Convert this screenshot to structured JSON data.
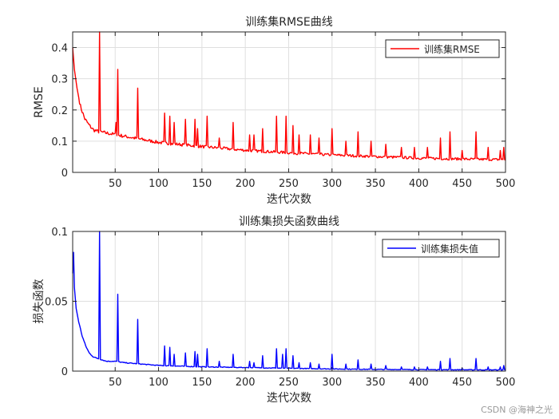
{
  "chart_data": [
    {
      "type": "line",
      "title": "训练集RMSE曲线",
      "xlabel": "迭代次数",
      "ylabel": "RMSE",
      "xlim": [
        1,
        500
      ],
      "ylim": [
        0,
        0.45
      ],
      "xticks": [
        50,
        100,
        150,
        200,
        250,
        300,
        350,
        400,
        450,
        500
      ],
      "xtick_labels": [
        "50",
        "100",
        "150",
        "200",
        "250",
        "300",
        "350",
        "400",
        "450",
        "500"
      ],
      "yticks": [
        0,
        0.1,
        0.2,
        0.3,
        0.4
      ],
      "ytick_labels": [
        "0",
        "0.1",
        "0.2",
        "0.3",
        "0.4"
      ],
      "grid": true,
      "legend_location": "top-right",
      "series": [
        {
          "name": "训练集RMSE",
          "color": "#ff0000",
          "baseline": {
            "x": [
              1,
              3,
              6,
              10,
              15,
              20,
              25,
              30,
              40,
              50,
              60,
              80,
              100,
              150,
              200,
              250,
              300,
              350,
              400,
              450,
              500
            ],
            "y": [
              0.4,
              0.33,
              0.27,
              0.21,
              0.17,
              0.15,
              0.135,
              0.13,
              0.125,
              0.12,
              0.115,
              0.105,
              0.095,
              0.082,
              0.07,
              0.062,
              0.055,
              0.05,
              0.045,
              0.042,
              0.04
            ]
          },
          "spikes": [
            {
              "x": 32,
              "y": 0.45
            },
            {
              "x": 53,
              "y": 0.33
            },
            {
              "x": 51,
              "y": 0.16
            },
            {
              "x": 76,
              "y": 0.27
            },
            {
              "x": 107,
              "y": 0.19
            },
            {
              "x": 113,
              "y": 0.18
            },
            {
              "x": 118,
              "y": 0.16
            },
            {
              "x": 131,
              "y": 0.17
            },
            {
              "x": 142,
              "y": 0.17
            },
            {
              "x": 145,
              "y": 0.14
            },
            {
              "x": 156,
              "y": 0.18
            },
            {
              "x": 170,
              "y": 0.11
            },
            {
              "x": 186,
              "y": 0.16
            },
            {
              "x": 205,
              "y": 0.12
            },
            {
              "x": 210,
              "y": 0.12
            },
            {
              "x": 220,
              "y": 0.14
            },
            {
              "x": 236,
              "y": 0.18
            },
            {
              "x": 247,
              "y": 0.18
            },
            {
              "x": 255,
              "y": 0.15
            },
            {
              "x": 262,
              "y": 0.12
            },
            {
              "x": 275,
              "y": 0.12
            },
            {
              "x": 285,
              "y": 0.11
            },
            {
              "x": 300,
              "y": 0.14
            },
            {
              "x": 316,
              "y": 0.1
            },
            {
              "x": 330,
              "y": 0.13
            },
            {
              "x": 345,
              "y": 0.1
            },
            {
              "x": 362,
              "y": 0.09
            },
            {
              "x": 380,
              "y": 0.08
            },
            {
              "x": 395,
              "y": 0.08
            },
            {
              "x": 410,
              "y": 0.08
            },
            {
              "x": 425,
              "y": 0.11
            },
            {
              "x": 436,
              "y": 0.13
            },
            {
              "x": 450,
              "y": 0.07
            },
            {
              "x": 466,
              "y": 0.13
            },
            {
              "x": 480,
              "y": 0.08
            },
            {
              "x": 494,
              "y": 0.07
            },
            {
              "x": 498,
              "y": 0.08
            }
          ]
        }
      ]
    },
    {
      "type": "line",
      "title": "训练集损失函数曲线",
      "xlabel": "迭代次数",
      "ylabel": "损失函数",
      "xlim": [
        1,
        500
      ],
      "ylim": [
        0,
        0.1
      ],
      "xticks": [
        50,
        100,
        150,
        200,
        250,
        300,
        350,
        400,
        450,
        500
      ],
      "xtick_labels": [
        "50",
        "100",
        "150",
        "200",
        "250",
        "300",
        "350",
        "400",
        "450",
        "500"
      ],
      "yticks": [
        0,
        0.05,
        0.1
      ],
      "ytick_labels": [
        "0",
        "0.05",
        "0.1"
      ],
      "grid": true,
      "legend_location": "top-right",
      "series": [
        {
          "name": "训练集损失值",
          "color": "#0000ff",
          "baseline": {
            "x": [
              1,
              2,
              3,
              5,
              8,
              12,
              16,
              20,
              25,
              30,
              40,
              50,
              60,
              80,
              100,
              150,
              200,
              250,
              300,
              350,
              400,
              450,
              500
            ],
            "y": [
              0.07,
              0.085,
              0.06,
              0.045,
              0.035,
              0.025,
              0.018,
              0.013,
              0.01,
              0.009,
              0.007,
              0.007,
              0.006,
              0.005,
              0.004,
              0.003,
              0.0025,
              0.002,
              0.0015,
              0.0012,
              0.001,
              0.0009,
              0.0008
            ]
          },
          "spikes": [
            {
              "x": 32,
              "y": 0.1
            },
            {
              "x": 53,
              "y": 0.055
            },
            {
              "x": 76,
              "y": 0.037
            },
            {
              "x": 107,
              "y": 0.018
            },
            {
              "x": 113,
              "y": 0.017
            },
            {
              "x": 118,
              "y": 0.012
            },
            {
              "x": 131,
              "y": 0.013
            },
            {
              "x": 142,
              "y": 0.014
            },
            {
              "x": 145,
              "y": 0.012
            },
            {
              "x": 156,
              "y": 0.016
            },
            {
              "x": 170,
              "y": 0.007
            },
            {
              "x": 186,
              "y": 0.012
            },
            {
              "x": 205,
              "y": 0.007
            },
            {
              "x": 210,
              "y": 0.006
            },
            {
              "x": 220,
              "y": 0.011
            },
            {
              "x": 236,
              "y": 0.016
            },
            {
              "x": 243,
              "y": 0.012
            },
            {
              "x": 247,
              "y": 0.016
            },
            {
              "x": 255,
              "y": 0.011
            },
            {
              "x": 262,
              "y": 0.006
            },
            {
              "x": 275,
              "y": 0.006
            },
            {
              "x": 285,
              "y": 0.005
            },
            {
              "x": 300,
              "y": 0.012
            },
            {
              "x": 316,
              "y": 0.005
            },
            {
              "x": 330,
              "y": 0.008
            },
            {
              "x": 345,
              "y": 0.005
            },
            {
              "x": 362,
              "y": 0.004
            },
            {
              "x": 380,
              "y": 0.003
            },
            {
              "x": 395,
              "y": 0.003
            },
            {
              "x": 410,
              "y": 0.003
            },
            {
              "x": 425,
              "y": 0.007
            },
            {
              "x": 436,
              "y": 0.009
            },
            {
              "x": 450,
              "y": 0.002
            },
            {
              "x": 466,
              "y": 0.009
            },
            {
              "x": 480,
              "y": 0.003
            },
            {
              "x": 494,
              "y": 0.003
            },
            {
              "x": 498,
              "y": 0.004
            }
          ]
        }
      ]
    }
  ],
  "watermark": "CSDN @海神之光"
}
